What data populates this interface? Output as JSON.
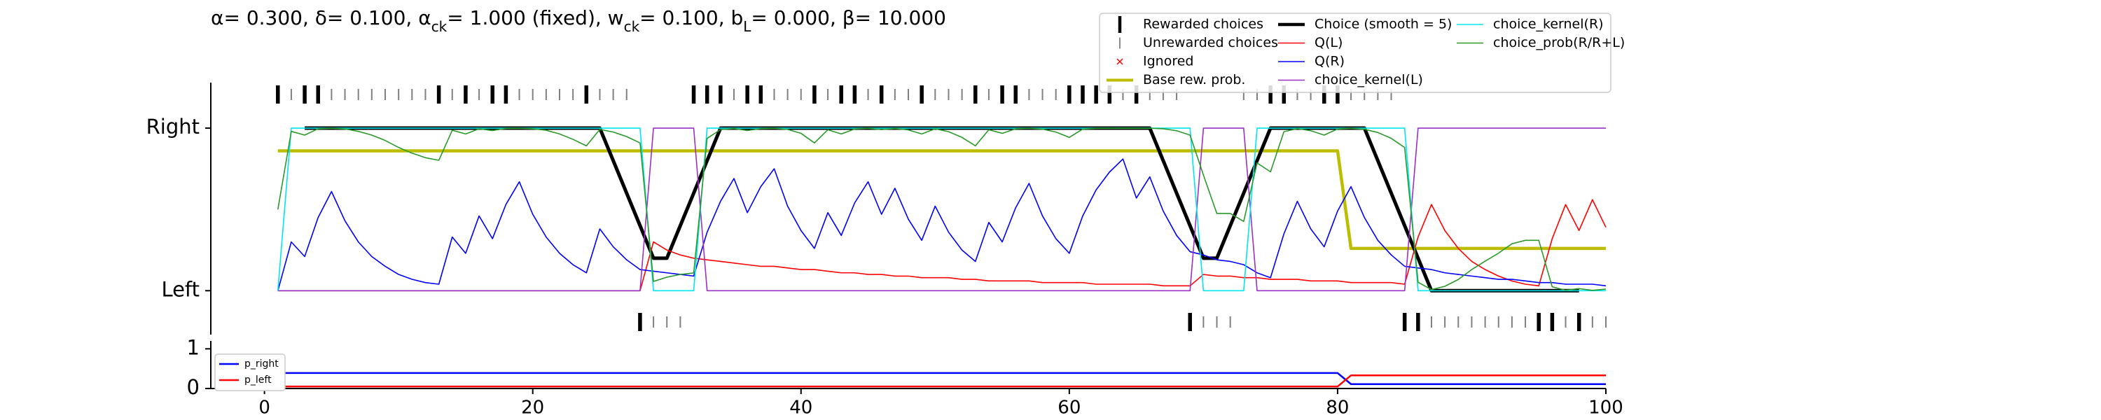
{
  "chart_data": [
    {
      "type": "line",
      "title_parts": [
        {
          "text": "α= 0.300, δ= 0.100, α"
        },
        {
          "text": "ck",
          "sub": true
        },
        {
          "text": "= 1.000 (fixed), w"
        },
        {
          "text": "ck",
          "sub": true
        },
        {
          "text": "= 0.100, b"
        },
        {
          "text": "L",
          "sub": true
        },
        {
          "text": "= 0.000, β= 10.000"
        }
      ],
      "xlim": [
        -4,
        100
      ],
      "ylim": [
        -0.27,
        1.28
      ],
      "yticks": [
        {
          "value": 0,
          "label": "Left"
        },
        {
          "value": 1,
          "label": "Right"
        }
      ],
      "legend": "upper right",
      "x": [
        1,
        2,
        3,
        4,
        5,
        6,
        7,
        8,
        9,
        10,
        11,
        12,
        13,
        14,
        15,
        16,
        17,
        18,
        19,
        20,
        21,
        22,
        23,
        24,
        25,
        26,
        27,
        28,
        29,
        30,
        31,
        32,
        33,
        34,
        35,
        36,
        37,
        38,
        39,
        40,
        41,
        42,
        43,
        44,
        45,
        46,
        47,
        48,
        49,
        50,
        51,
        52,
        53,
        54,
        55,
        56,
        57,
        58,
        59,
        60,
        61,
        62,
        63,
        64,
        65,
        66,
        67,
        68,
        69,
        70,
        71,
        72,
        73,
        74,
        75,
        76,
        77,
        78,
        79,
        80,
        81,
        82,
        83,
        84,
        85,
        86,
        87,
        88,
        89,
        90,
        91,
        92,
        93,
        94,
        95,
        96,
        97,
        98,
        99,
        100
      ],
      "choice": [
        1,
        1,
        1,
        1,
        1,
        1,
        1,
        1,
        1,
        1,
        1,
        1,
        1,
        1,
        1,
        1,
        1,
        1,
        1,
        1,
        1,
        1,
        1,
        1,
        1,
        1,
        1,
        0,
        0,
        0,
        0,
        1,
        1,
        1,
        1,
        1,
        1,
        1,
        1,
        1,
        1,
        1,
        1,
        1,
        1,
        1,
        1,
        1,
        1,
        1,
        1,
        1,
        1,
        1,
        1,
        1,
        1,
        1,
        1,
        1,
        1,
        1,
        1,
        1,
        1,
        1,
        1,
        1,
        0,
        0,
        0,
        0,
        1,
        1,
        1,
        1,
        1,
        1,
        1,
        1,
        1,
        1,
        1,
        1,
        0,
        0,
        0,
        0,
        0,
        0,
        0,
        0,
        0,
        0,
        0,
        0,
        0,
        0,
        0,
        0
      ],
      "rewarded": [
        1,
        0,
        1,
        1,
        0,
        0,
        0,
        0,
        0,
        0,
        0,
        0,
        1,
        0,
        1,
        0,
        1,
        1,
        0,
        0,
        0,
        0,
        0,
        1,
        0,
        0,
        0,
        1,
        0,
        0,
        0,
        1,
        1,
        1,
        0,
        1,
        1,
        0,
        0,
        0,
        1,
        0,
        1,
        1,
        0,
        1,
        0,
        0,
        1,
        0,
        0,
        0,
        1,
        0,
        1,
        1,
        0,
        0,
        0,
        1,
        1,
        1,
        1,
        0,
        1,
        0,
        0,
        0,
        1,
        0,
        0,
        0,
        0,
        0,
        1,
        1,
        0,
        0,
        1,
        1,
        0,
        0,
        0,
        0,
        1,
        1,
        0,
        0,
        0,
        0,
        0,
        0,
        0,
        0,
        1,
        1,
        0,
        1,
        0,
        0
      ],
      "legend_markers": [
        {
          "name": "Rewarded choices",
          "color": "#000000",
          "marker": "thick-tick"
        },
        {
          "name": "Unrewarded choices",
          "color": "#808080",
          "marker": "tick"
        },
        {
          "name": "Ignored",
          "color": "#ff0000",
          "marker": "x"
        }
      ],
      "series": [
        {
          "name": "Base rew. prob.",
          "color": "#bcbd00",
          "width": 4.5,
          "values": [
            0.86,
            0.86,
            0.86,
            0.86,
            0.86,
            0.86,
            0.86,
            0.86,
            0.86,
            0.86,
            0.86,
            0.86,
            0.86,
            0.86,
            0.86,
            0.86,
            0.86,
            0.86,
            0.86,
            0.86,
            0.86,
            0.86,
            0.86,
            0.86,
            0.86,
            0.86,
            0.86,
            0.86,
            0.86,
            0.86,
            0.86,
            0.86,
            0.86,
            0.86,
            0.86,
            0.86,
            0.86,
            0.86,
            0.86,
            0.86,
            0.86,
            0.86,
            0.86,
            0.86,
            0.86,
            0.86,
            0.86,
            0.86,
            0.86,
            0.86,
            0.86,
            0.86,
            0.86,
            0.86,
            0.86,
            0.86,
            0.86,
            0.86,
            0.86,
            0.86,
            0.86,
            0.86,
            0.86,
            0.86,
            0.86,
            0.86,
            0.86,
            0.86,
            0.86,
            0.86,
            0.86,
            0.86,
            0.86,
            0.86,
            0.86,
            0.86,
            0.86,
            0.86,
            0.86,
            0.86,
            0.26,
            0.26,
            0.26,
            0.26,
            0.26,
            0.26,
            0.26,
            0.26,
            0.26,
            0.26,
            0.26,
            0.26,
            0.26,
            0.26,
            0.26,
            0.26,
            0.26,
            0.26,
            0.26,
            0.26
          ]
        },
        {
          "name": "Choice (smooth = 5)",
          "color": "#000000",
          "width": 5,
          "values": [
            null,
            null,
            1,
            1,
            1,
            1,
            1,
            1,
            1,
            1,
            1,
            1,
            1,
            1,
            1,
            1,
            1,
            1,
            1,
            1,
            1,
            1,
            1,
            1,
            1,
            0.8,
            0.6,
            0.4,
            0.2,
            0.2,
            0.4,
            0.6,
            0.8,
            1,
            1,
            1,
            1,
            1,
            1,
            1,
            1,
            1,
            1,
            1,
            1,
            1,
            1,
            1,
            1,
            1,
            1,
            1,
            1,
            1,
            1,
            1,
            1,
            1,
            1,
            1,
            1,
            1,
            1,
            1,
            1,
            1,
            0.8,
            0.6,
            0.4,
            0.2,
            0.2,
            0.4,
            0.6,
            0.8,
            1,
            1,
            1,
            1,
            1,
            1,
            1,
            1,
            0.8,
            0.6,
            0.4,
            0.2,
            0,
            0,
            0,
            0,
            0,
            0,
            0,
            0,
            0,
            0,
            0,
            0,
            null,
            null
          ]
        },
        {
          "name": "Q(L)",
          "color": "#ff0000",
          "width": 1.6,
          "values": [
            0,
            0,
            0,
            0,
            0,
            0,
            0,
            0,
            0,
            0,
            0,
            0,
            0,
            0,
            0,
            0,
            0,
            0,
            0,
            0,
            0,
            0,
            0,
            0,
            0,
            0,
            0,
            0,
            0.3,
            0.25,
            0.22,
            0.2,
            0.19,
            0.18,
            0.17,
            0.16,
            0.15,
            0.15,
            0.14,
            0.13,
            0.13,
            0.12,
            0.11,
            0.11,
            0.1,
            0.1,
            0.09,
            0.09,
            0.08,
            0.08,
            0.08,
            0.07,
            0.07,
            0.06,
            0.06,
            0.06,
            0.06,
            0.05,
            0.05,
            0.05,
            0.05,
            0.04,
            0.04,
            0.04,
            0.04,
            0.04,
            0.03,
            0.03,
            0.03,
            0.1,
            0.09,
            0.09,
            0.08,
            0.08,
            0.07,
            0.07,
            0.07,
            0.06,
            0.06,
            0.06,
            0.05,
            0.05,
            0.05,
            0.05,
            0.04,
            0.33,
            0.53,
            0.37,
            0.26,
            0.18,
            0.13,
            0.09,
            0.06,
            0.04,
            0.03,
            0.32,
            0.53,
            0.37,
            0.56,
            0.39
          ]
        },
        {
          "name": "Q(R)",
          "color": "#0000ff",
          "width": 1.6,
          "values": [
            0,
            0.3,
            0.21,
            0.45,
            0.61,
            0.43,
            0.3,
            0.21,
            0.15,
            0.1,
            0.07,
            0.05,
            0.04,
            0.33,
            0.23,
            0.46,
            0.32,
            0.53,
            0.67,
            0.47,
            0.33,
            0.23,
            0.16,
            0.11,
            0.38,
            0.27,
            0.19,
            0.13,
            0.12,
            0.11,
            0.1,
            0.09,
            0.36,
            0.55,
            0.69,
            0.48,
            0.64,
            0.75,
            0.52,
            0.37,
            0.26,
            0.48,
            0.34,
            0.54,
            0.67,
            0.47,
            0.63,
            0.44,
            0.31,
            0.52,
            0.36,
            0.25,
            0.18,
            0.42,
            0.3,
            0.51,
            0.66,
            0.46,
            0.32,
            0.23,
            0.46,
            0.62,
            0.73,
            0.81,
            0.57,
            0.7,
            0.49,
            0.34,
            0.24,
            0.22,
            0.19,
            0.18,
            0.16,
            0.11,
            0.08,
            0.35,
            0.55,
            0.38,
            0.27,
            0.49,
            0.64,
            0.45,
            0.31,
            0.22,
            0.15,
            0.14,
            0.13,
            0.11,
            0.1,
            0.09,
            0.08,
            0.07,
            0.07,
            0.06,
            0.05,
            0.05,
            0.04,
            0.04,
            0.04,
            0.03
          ]
        },
        {
          "name": "choice_kernel(L)",
          "color": "#9b30c8",
          "width": 1.6,
          "values": [
            0,
            0,
            0,
            0,
            0,
            0,
            0,
            0,
            0,
            0,
            0,
            0,
            0,
            0,
            0,
            0,
            0,
            0,
            0,
            0,
            0,
            0,
            0,
            0,
            0,
            0,
            0,
            0,
            1,
            1,
            1,
            1,
            0,
            0,
            0,
            0,
            0,
            0,
            0,
            0,
            0,
            0,
            0,
            0,
            0,
            0,
            0,
            0,
            0,
            0,
            0,
            0,
            0,
            0,
            0,
            0,
            0,
            0,
            0,
            0,
            0,
            0,
            0,
            0,
            0,
            0,
            0,
            0,
            0,
            1,
            1,
            1,
            1,
            0,
            0,
            0,
            0,
            0,
            0,
            0,
            0,
            0,
            0,
            0,
            0,
            1,
            1,
            1,
            1,
            1,
            1,
            1,
            1,
            1,
            1,
            1,
            1,
            1,
            1,
            1
          ]
        },
        {
          "name": "choice_kernel(R)",
          "color": "#00e5ee",
          "width": 1.6,
          "values": [
            0,
            1,
            1,
            1,
            1,
            1,
            1,
            1,
            1,
            1,
            1,
            1,
            1,
            1,
            1,
            1,
            1,
            1,
            1,
            1,
            1,
            1,
            1,
            1,
            1,
            1,
            1,
            1,
            0,
            0,
            0,
            0,
            1,
            1,
            1,
            1,
            1,
            1,
            1,
            1,
            1,
            1,
            1,
            1,
            1,
            1,
            1,
            1,
            1,
            1,
            1,
            1,
            1,
            1,
            1,
            1,
            1,
            1,
            1,
            1,
            1,
            1,
            1,
            1,
            1,
            1,
            1,
            1,
            1,
            0,
            0,
            0,
            0,
            1,
            1,
            1,
            1,
            1,
            1,
            1,
            1,
            1,
            1,
            1,
            1,
            0,
            0,
            0,
            0,
            0,
            0,
            0,
            0,
            0,
            0,
            0,
            0,
            0,
            0,
            0
          ]
        },
        {
          "name": "choice_prob(R/R+L)",
          "color": "#2a9a2a",
          "width": 1.6,
          "values": [
            0.5,
            0.98,
            0.957,
            0.996,
            0.999,
            0.995,
            0.98,
            0.957,
            0.924,
            0.881,
            0.846,
            0.818,
            0.802,
            0.987,
            0.964,
            0.996,
            0.985,
            0.998,
            0.999,
            0.996,
            0.987,
            0.964,
            0.931,
            0.891,
            0.992,
            0.976,
            0.948,
            0.909,
            0.057,
            0.083,
            0.1,
            0.109,
            0.937,
            0.991,
            0.998,
            0.985,
            0.997,
            0.999,
            0.992,
            0.968,
            0.909,
            0.99,
            0.964,
            0.995,
            0.999,
            0.991,
            0.998,
            0.989,
            0.964,
            0.996,
            0.978,
            0.943,
            0.891,
            0.99,
            0.968,
            0.996,
            0.999,
            0.994,
            0.976,
            0.943,
            0.994,
            0.999,
            0.999,
            1,
            0.999,
            0.999,
            0.996,
            0.984,
            0.957,
            0.711,
            0.475,
            0.475,
            0.426,
            0.786,
            0.731,
            0.978,
            0.997,
            0.984,
            0.957,
            0.995,
            0.999,
            0.993,
            0.973,
            0.937,
            0.881,
            0.052,
            0.007,
            0.027,
            0.069,
            0.13,
            0.182,
            0.231,
            0.289,
            0.31,
            0.31,
            0.024,
            0.003,
            0.013,
            0.002,
            0.01
          ]
        }
      ]
    },
    {
      "type": "line",
      "xlim": [
        -4,
        100
      ],
      "ylim": [
        0,
        1.2
      ],
      "xticks": [
        0,
        20,
        40,
        60,
        80,
        100
      ],
      "yticks": [
        0,
        1
      ],
      "legend": "upper left",
      "x": [
        0,
        80,
        81,
        100
      ],
      "series": [
        {
          "name": "p_right",
          "color": "#0000ff",
          "width": 2.5,
          "values": [
            0.39,
            0.39,
            0.11,
            0.11
          ]
        },
        {
          "name": "p_left",
          "color": "#ff0000",
          "width": 2.5,
          "values": [
            0.05,
            0.05,
            0.33,
            0.33
          ]
        }
      ]
    }
  ]
}
